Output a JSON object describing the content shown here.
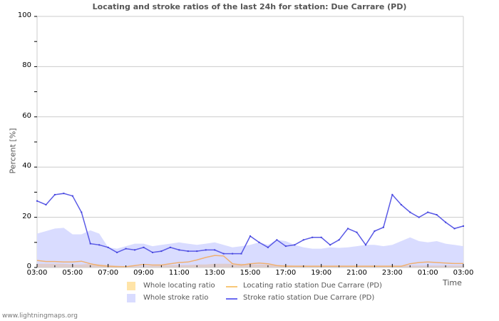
{
  "chart_data": {
    "type": "area",
    "title": "Locating and stroke ratios of the last 24h for station: Due Carrare (PD)",
    "xlabel": "Time",
    "ylabel": "Percent   [%]",
    "ylim": [
      0,
      100
    ],
    "yticks": [
      "0",
      "20",
      "40",
      "60",
      "80",
      "100"
    ],
    "xticks": [
      "03:00",
      "05:00",
      "07:00",
      "09:00",
      "11:00",
      "13:00",
      "15:00",
      "17:00",
      "19:00",
      "21:00",
      "23:00",
      "01:00",
      "03:00"
    ],
    "grid": true,
    "legend_position": "bottom",
    "x_hours": [
      0,
      0.5,
      1,
      1.5,
      2,
      2.5,
      3,
      3.5,
      4,
      4.5,
      5,
      5.5,
      6,
      6.5,
      7,
      7.5,
      8,
      8.5,
      9,
      9.5,
      10,
      10.5,
      11,
      11.5,
      12,
      12.5,
      13,
      13.5,
      14,
      14.5,
      15,
      15.5,
      16,
      16.5,
      17,
      17.5,
      18,
      18.5,
      19,
      19.5,
      20,
      20.5,
      21,
      21.5,
      22,
      22.5,
      23,
      23.5,
      24
    ],
    "series": [
      {
        "name": "Whole locating ratio",
        "kind": "area",
        "color": "#ffe4a8",
        "values": [
          1.5,
          1.5,
          1.5,
          1.5,
          1.2,
          1.2,
          1.5,
          1.3,
          1.0,
          0.8,
          0.5,
          0.5,
          0.5,
          0.7,
          0.8,
          1.0,
          1.0,
          1.0,
          1.2,
          1.2,
          1.5,
          1.5,
          1.5,
          1.5,
          1.2,
          1.2,
          1.2,
          1.0,
          1.0,
          0.8,
          0.8,
          0.8,
          0.8,
          0.8,
          0.8,
          0.8,
          0.8,
          0.8,
          0.8,
          0.8,
          0.8,
          0.8,
          0.8,
          0.8,
          0.8,
          0.8,
          0.8,
          0.8,
          0.8
        ]
      },
      {
        "name": "Whole stroke ratio",
        "kind": "area",
        "color": "#d9dcff",
        "values": [
          13.5,
          14.5,
          15.5,
          15.8,
          13.2,
          13.2,
          14.8,
          13.5,
          8,
          7.5,
          8.5,
          9.5,
          9.5,
          8.5,
          9,
          9.5,
          10,
          9.5,
          9,
          9.5,
          10,
          9,
          8,
          8.5,
          9,
          10,
          9,
          11,
          10.5,
          9,
          8,
          7.5,
          7.5,
          8,
          7.8,
          8,
          8.5,
          9,
          9,
          8.5,
          9,
          10.5,
          12,
          10.5,
          10,
          10.5,
          9.5,
          9,
          8.5
        ]
      },
      {
        "name": "Locating ratio station Due Carrare (PD)",
        "kind": "line",
        "color": "#f0b070",
        "values": [
          2.8,
          2.4,
          2.4,
          2.2,
          2.2,
          2.5,
          1.5,
          0.8,
          0.5,
          0.3,
          0.3,
          0.8,
          1.2,
          1.0,
          1.0,
          1.5,
          2.0,
          2.2,
          3.0,
          4.0,
          4.8,
          4.6,
          1.5,
          1.0,
          1.5,
          1.8,
          1.5,
          0.8,
          0.5,
          0.5,
          0.5,
          0.5,
          0.5,
          0.5,
          0.5,
          0.5,
          0.5,
          0.5,
          0.5,
          0.5,
          0.5,
          0.5,
          1.5,
          2.0,
          2.2,
          2.0,
          1.8,
          1.6,
          1.6
        ]
      },
      {
        "name": "Stroke ratio station Due Carrare (PD)",
        "kind": "line",
        "color": "#5a5ae6",
        "values": [
          26.5,
          25,
          29,
          29.5,
          28.5,
          22,
          9.5,
          9,
          8,
          6,
          7.5,
          7,
          8,
          6,
          6.5,
          8,
          7,
          6.5,
          6.5,
          7,
          7,
          5.5,
          5.5,
          5.5,
          12.5,
          10,
          8,
          11,
          8.5,
          9,
          11,
          12,
          12,
          9,
          11,
          15.5,
          14,
          9,
          14.5,
          16,
          29,
          25,
          22,
          20,
          22,
          21,
          18,
          15.5,
          16.5
        ]
      }
    ]
  },
  "legend": {
    "items": [
      {
        "label": "Whole locating ratio",
        "type": "swatch",
        "color": "#ffe4a8"
      },
      {
        "label": "Locating ratio station Due Carrare (PD)",
        "type": "line",
        "color": "#f8c878"
      },
      {
        "label": "Whole stroke ratio",
        "type": "swatch",
        "color": "#d9dcff"
      },
      {
        "label": "Stroke ratio station Due Carrare (PD)",
        "type": "line",
        "color": "#6b6bf0"
      }
    ]
  },
  "footer": {
    "text": "www.lightningmaps.org"
  }
}
